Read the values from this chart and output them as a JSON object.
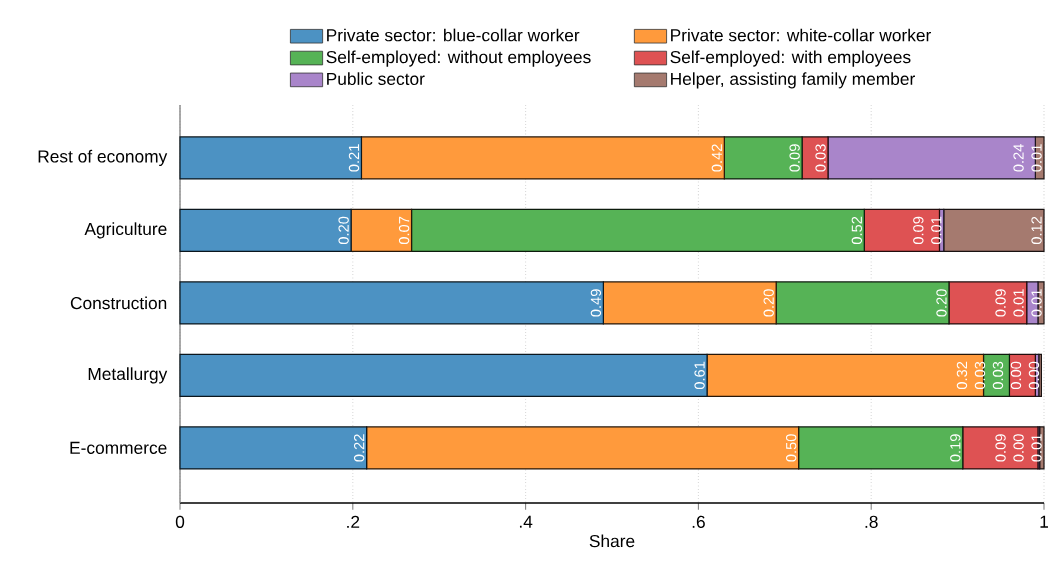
{
  "chart_data": {
    "type": "bar",
    "orientation": "horizontal",
    "stacked": true,
    "xlabel": "Share",
    "categories": [
      "Rest of economy",
      "Agriculture",
      "Construction",
      "Metallurgy",
      "E-commerce"
    ],
    "series": [
      {
        "name": "Private sector: blue-collar worker",
        "color": "#4c92c3",
        "values": [
          0.21,
          0.198,
          0.49,
          0.61,
          0.216
        ],
        "value_labels": [
          "0.21",
          "0.20",
          "0.49",
          "0.61",
          "0.22"
        ]
      },
      {
        "name": "Private sector: white-collar worker",
        "color": "#ff9a3c",
        "values": [
          0.42,
          0.07,
          0.2,
          0.32,
          0.5
        ],
        "value_labels": [
          "0.42",
          "0.07",
          "0.20",
          "0.32",
          "0.50"
        ]
      },
      {
        "name": "Self-employed: without employees",
        "color": "#56b356",
        "values": [
          0.09,
          0.524,
          0.2,
          0.03,
          0.19
        ],
        "value_labels": [
          "0.09",
          "0.52",
          "0.20",
          "0.03",
          "0.19"
        ]
      },
      {
        "name": "Self-employed: with employees",
        "color": "#de5253",
        "values": [
          0.03,
          0.087,
          0.09,
          0.03,
          0.087
        ],
        "value_labels": [
          "0.03",
          "0.09",
          "0.09",
          "0.03",
          "0.09"
        ]
      },
      {
        "name": "Public sector",
        "color": "#a985ca",
        "values": [
          0.24,
          0.005,
          0.013,
          0.004,
          0.002
        ],
        "value_labels": [
          "0.24",
          "0.01",
          "0.01",
          "0.00",
          "0.00"
        ]
      },
      {
        "name": "Helper, assisting family member",
        "color": "#a57a6f",
        "values": [
          0.01,
          0.116,
          0.007,
          0.003,
          0.005
        ],
        "value_labels": [
          "0.01",
          "0.12",
          "0.01",
          "0.00",
          "0.01"
        ]
      }
    ],
    "xlim": [
      0,
      1
    ],
    "xticks": [
      0,
      {
        "value": 0.2,
        "label": ".2"
      },
      {
        "value": 0.4,
        "label": ".4"
      },
      {
        "value": 0.6,
        "label": ".6"
      },
      {
        "value": 0.8,
        "label": ".8"
      },
      1
    ],
    "grid": "x",
    "legend": "top"
  }
}
